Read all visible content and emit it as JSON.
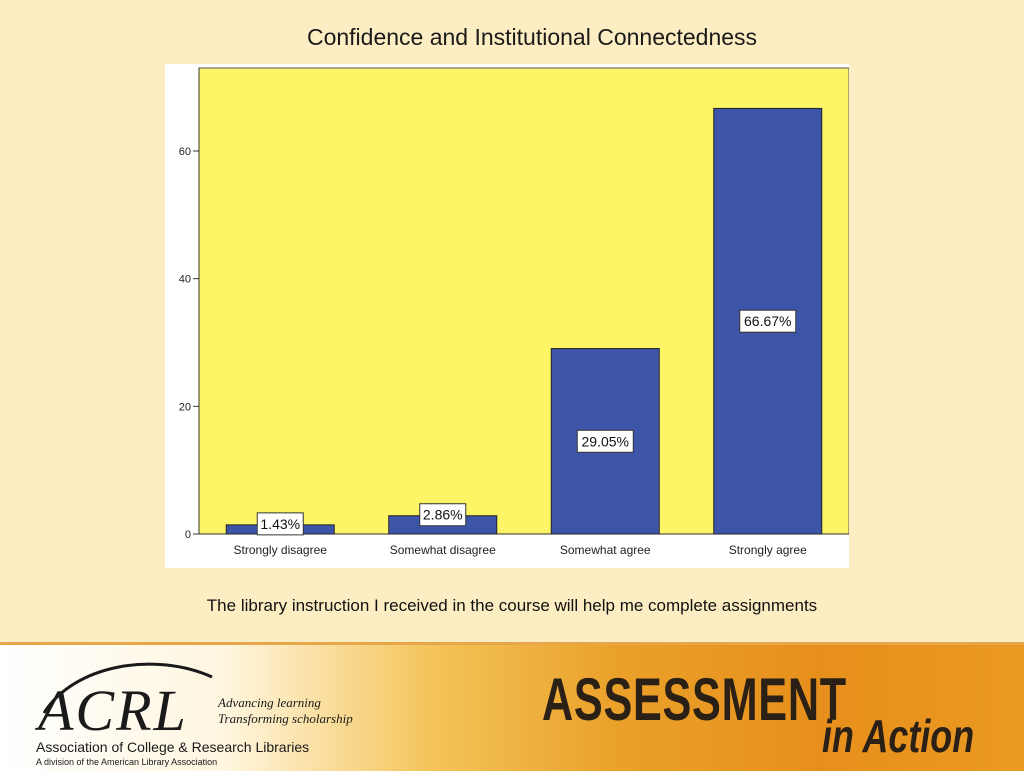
{
  "slide": {
    "title": "Confidence and Institutional Connectedness",
    "caption": "The library instruction I received in the course will help me complete assignments"
  },
  "chart_data": {
    "type": "bar",
    "categories": [
      "Strongly disagree",
      "Somewhat disagree",
      "Somewhat agree",
      "Strongly agree"
    ],
    "values": [
      1.43,
      2.86,
      29.05,
      66.67
    ],
    "data_labels": [
      "1.43%",
      "2.86%",
      "29.05%",
      "66.67%"
    ],
    "yticks": [
      0,
      20,
      40,
      60
    ],
    "ylim": [
      0,
      73
    ],
    "grid": false,
    "colors": {
      "bar": "#3d55a8",
      "plot_bg": "#fdf566",
      "outer_bg": "#ffffff"
    }
  },
  "footer": {
    "logo_text": "ACRL",
    "tagline_line1": "Advancing learning",
    "tagline_line2": "Transforming scholarship",
    "org_name": "Association of College & Research Libraries",
    "division_note": "A division of the American Library Association",
    "brand_main": "ASSESSMENT",
    "brand_sub": "in Action"
  }
}
